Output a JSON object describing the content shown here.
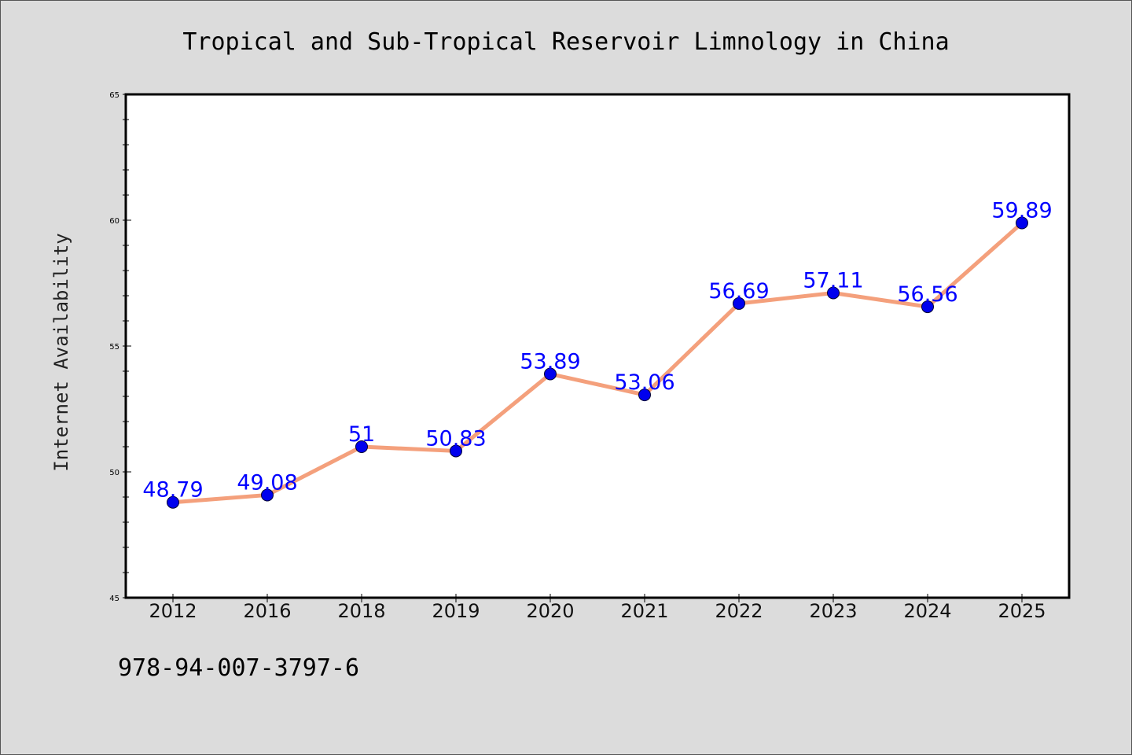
{
  "footer": {
    "code": "978-94-007-3797-6"
  },
  "chart_data": {
    "type": "line",
    "title": "Tropical and Sub-Tropical Reservoir Limnology in China",
    "xlabel": "",
    "ylabel": "Internet Availability",
    "categories": [
      "2012",
      "2016",
      "2018",
      "2019",
      "2020",
      "2021",
      "2022",
      "2023",
      "2024",
      "2025"
    ],
    "values": [
      48.79,
      49.08,
      51,
      50.83,
      53.89,
      53.06,
      56.69,
      57.11,
      56.56,
      59.89
    ],
    "value_labels": [
      "48.79",
      "49.08",
      "51",
      "50.83",
      "53.89",
      "53.06",
      "56.69",
      "57.11",
      "56.56",
      "59.89"
    ],
    "ylim": [
      45,
      65
    ],
    "yticks": [
      45,
      50,
      55,
      60,
      65
    ],
    "ytick_labels": [
      "45",
      "50",
      "55",
      "60",
      "65"
    ],
    "grid": false,
    "colors": {
      "line": "#f4a07c",
      "marker": "#0000ee",
      "value_label": "#0000ff",
      "plot_background": "#ffffff",
      "page_background": "#dcdcdc"
    }
  }
}
